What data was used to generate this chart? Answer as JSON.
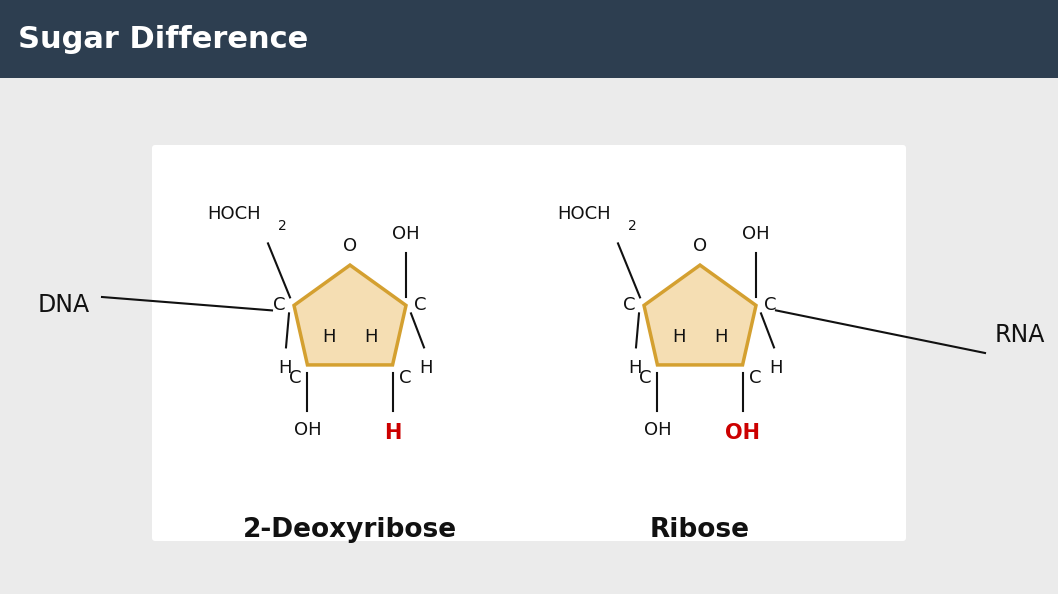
{
  "title": "Sugar Difference",
  "title_bg": "#2d3e50",
  "title_color": "#ffffff",
  "bg_color": "#ebebeb",
  "panel_bg": "#ffffff",
  "ring_fill": "#f5deb3",
  "ring_edge": "#d4a030",
  "ring_edge_width": 2.5,
  "label_deoxy": "2-Deoxyribose",
  "label_ribose": "Ribose",
  "dna_label": "DNA",
  "rna_label": "RNA",
  "red_color": "#cc0000",
  "black_color": "#111111",
  "font_size_main": 13,
  "font_size_label": 17,
  "font_size_title": 22,
  "font_size_sub": 9
}
